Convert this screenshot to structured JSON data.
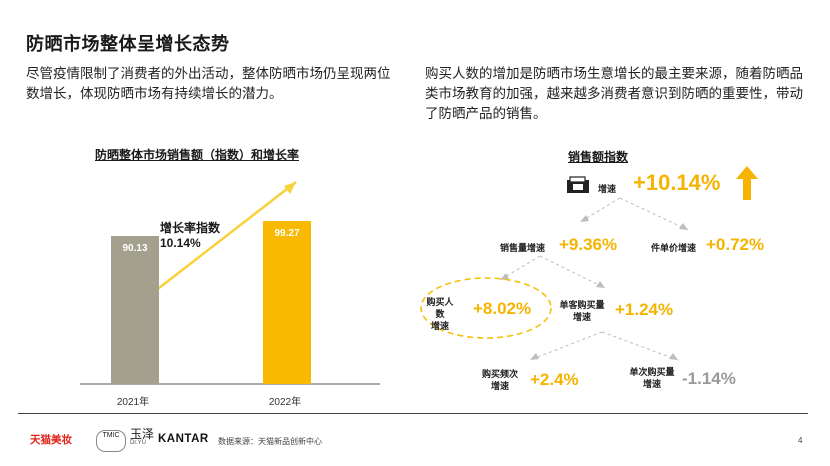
{
  "title": "防晒市场整体呈增长态势",
  "desc_left": "尽管疫情限制了消费者的外出活动，整体防晒市场仍呈现两位数增长，体现防晒市场有持续增长的潜力。",
  "desc_right": "购买人数的增加是防晒市场生意增长的最主要来源，随着防晒品类市场教育的加强，越来越多消费者意识到防晒的重要性，带动了防晒产品的销售。",
  "chart_data": {
    "type": "bar",
    "title": "防晒整体市场销售额（指数）和增长率",
    "categories": [
      "2021年",
      "2022年"
    ],
    "values": [
      90.13,
      99.27
    ],
    "value_labels": [
      "90.13",
      "99.27"
    ],
    "colors": [
      "#a3a08d",
      "#f8b900"
    ],
    "ylim": [
      0,
      105
    ],
    "growth_label": "增长率指数",
    "growth_value": "10.14%"
  },
  "tree": {
    "title": "销售额指数",
    "root": {
      "label": "增速",
      "value": "+10.14%"
    },
    "level1_left": {
      "label": "销售量增速",
      "value": "+9.36%"
    },
    "level1_right": {
      "label": "件单价增速",
      "value": "+0.72%"
    },
    "level2_left": {
      "label1": "购买人数",
      "label2": "增速",
      "value": "+8.02%"
    },
    "level2_right": {
      "label1": "单客购买量",
      "label2": "增速",
      "value": "+1.24%"
    },
    "level3_left": {
      "label1": "购买频次",
      "label2": "增速",
      "value": "+2.4%"
    },
    "level3_right": {
      "label1": "单次购买量",
      "label2": "增速",
      "value": "-1.14%"
    }
  },
  "footer": {
    "brand1": "天猫美妆",
    "brand2_small": "TMIC",
    "brand3": "玉泽",
    "brand3_sub": "Dr.YU",
    "brand4": "KANTAR",
    "source": "数据来源：天猫新品创新中心",
    "page": "4"
  },
  "colors": {
    "accent": "#f4b400",
    "bar_gray": "#a3a08d",
    "bar_gold": "#f8b900"
  }
}
